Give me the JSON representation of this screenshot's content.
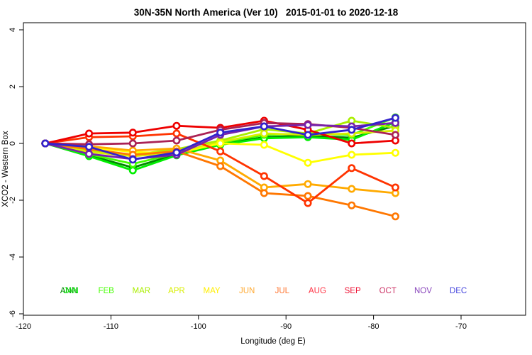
{
  "title": "30N-35N North America (Ver 10)   2015-01-01 to 2020-12-18",
  "chart_data": {
    "type": "line",
    "title": "30N-35N North America (Ver 10)   2015-01-01 to 2020-12-18",
    "xlabel": "Longitude (deg E)",
    "ylabel": "XCO2 - Western Box",
    "xlim": [
      -120,
      -66
    ],
    "ylim": [
      -6,
      4
    ],
    "xticks": [
      -120,
      -110,
      -100,
      -90,
      -80,
      -70
    ],
    "yticks": [
      4,
      2,
      0,
      -2,
      -4,
      -6
    ],
    "grid": false,
    "legend_position": "bottom-row",
    "x": [
      -117.5,
      -112.5,
      -107.5,
      -102.5,
      -97.5,
      -92.5,
      -87.5,
      -82.5,
      -77.5
    ],
    "series": [
      {
        "name": "ANN",
        "color": "#008800",
        "values": [
          0,
          -0.42,
          -0.85,
          -0.38,
          -0.02,
          0.22,
          0.28,
          0.2,
          0.62
        ]
      },
      {
        "name": "JAN",
        "color": "#00EE00",
        "values": [
          0,
          -0.45,
          -0.95,
          -0.42,
          -0.05,
          0.18,
          0.22,
          0.13,
          0.75
        ]
      },
      {
        "name": "FEB",
        "color": "#44FF00",
        "values": [
          0,
          -0.38,
          -0.72,
          -0.35,
          0.02,
          0.3,
          0.35,
          0.3,
          0.92
        ]
      },
      {
        "name": "MAR",
        "color": "#AAEE00",
        "values": [
          0,
          -0.25,
          -0.4,
          -0.2,
          0.1,
          0.5,
          0.35,
          0.8,
          0.55
        ]
      },
      {
        "name": "APR",
        "color": "#D8EE00",
        "values": [
          0,
          -0.3,
          -0.45,
          -0.33,
          0.05,
          0.35,
          0.3,
          0.35,
          0.45
        ]
      },
      {
        "name": "MAY",
        "color": "#FFFF00",
        "values": [
          0,
          -0.15,
          -0.3,
          -0.35,
          0,
          -0.05,
          -0.68,
          -0.4,
          -0.33
        ]
      },
      {
        "name": "JUN",
        "color": "#FFAA00",
        "values": [
          0,
          -0.1,
          -0.25,
          -0.18,
          -0.6,
          -1.55,
          -1.43,
          -1.6,
          -1.75
        ]
      },
      {
        "name": "JUL",
        "color": "#FF7700",
        "values": [
          0,
          -0.2,
          -0.4,
          -0.28,
          -0.8,
          -1.75,
          -1.85,
          -2.18,
          -2.57
        ]
      },
      {
        "name": "AUG",
        "color": "#FF3300",
        "values": [
          0,
          0.22,
          0.25,
          0.35,
          -0.28,
          -1.15,
          -2.1,
          -0.87,
          -1.55
        ]
      },
      {
        "name": "SEP",
        "color": "#EE0000",
        "values": [
          0,
          0.35,
          0.38,
          0.62,
          0.55,
          0.8,
          0.48,
          0,
          0.1
        ]
      },
      {
        "name": "OCT",
        "color": "#AA2255",
        "values": [
          0,
          -0.03,
          0,
          0.1,
          0.48,
          0.72,
          0.68,
          0.55,
          0.3
        ]
      },
      {
        "name": "NOV",
        "color": "#7722AA",
        "values": [
          0,
          -0.37,
          -0.55,
          -0.4,
          0.3,
          0.6,
          0.65,
          0.6,
          0.72
        ]
      },
      {
        "name": "DEC",
        "color": "#3322CC",
        "values": [
          0,
          -0.12,
          -0.57,
          -0.32,
          0.38,
          0.6,
          0.3,
          0.48,
          0.9
        ]
      }
    ],
    "legend": [
      {
        "label": "ANN",
        "color": "#008800"
      },
      {
        "label": "JAN",
        "color": "#00EE00"
      },
      {
        "label": "FEB",
        "color": "#44FF00"
      },
      {
        "label": "MAR",
        "color": "#AAEE00"
      },
      {
        "label": "APR",
        "color": "#D8EE00"
      },
      {
        "label": "MAY",
        "color": "#FFEE00"
      },
      {
        "label": "JUN",
        "color": "#FFAA33"
      },
      {
        "label": "JUL",
        "color": "#FF7733"
      },
      {
        "label": "AUG",
        "color": "#FF3344"
      },
      {
        "label": "SEP",
        "color": "#EE1133"
      },
      {
        "label": "OCT",
        "color": "#CC3366"
      },
      {
        "label": "NOV",
        "color": "#8844BB"
      },
      {
        "label": "DEC",
        "color": "#4444DD"
      }
    ]
  }
}
